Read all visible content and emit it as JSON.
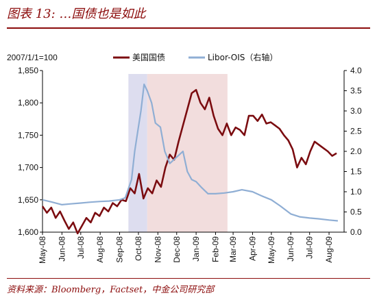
{
  "figure": {
    "title": "图表 13: …国债也是如此",
    "source": "资料来源：Bloomberg，Factset，中金公司研究部"
  },
  "chart_data": {
    "type": "line",
    "base_note": "2007/1/1=100",
    "x_ticks": [
      "May-08",
      "Jun-08",
      "Jul-08",
      "Aug-08",
      "Sep-08",
      "Oct-08",
      "Nov-08",
      "Dec-08",
      "Jan-09",
      "Feb-09",
      "Mar-09",
      "Apr-09",
      "May-09",
      "Jun-09",
      "Jul-09",
      "Aug-09"
    ],
    "y_left": {
      "ticks": [
        "1,600",
        "1,650",
        "1,700",
        "1,750",
        "1,800",
        "1,850"
      ],
      "min": 1600,
      "max": 1850
    },
    "y_right": {
      "ticks": [
        "0.0",
        "0.5",
        "1.0",
        "1.5",
        "2.0",
        "2.5",
        "3.0",
        "3.5",
        "4.0"
      ],
      "min": 0,
      "max": 4
    },
    "shaded_regions": [
      {
        "from": "2008-09-15",
        "to": "2008-10-15",
        "color": "#DDDDEF"
      },
      {
        "from": "2008-10-15",
        "to": "2009-02-20",
        "color": "#F2DDDD"
      }
    ],
    "series": [
      {
        "name": "美国国债",
        "axis": "left",
        "color": "#7B0C10",
        "points": [
          [
            "2008-05-01",
            1640
          ],
          [
            "2008-05-08",
            1630
          ],
          [
            "2008-05-15",
            1638
          ],
          [
            "2008-05-22",
            1622
          ],
          [
            "2008-05-29",
            1632
          ],
          [
            "2008-06-05",
            1618
          ],
          [
            "2008-06-12",
            1605
          ],
          [
            "2008-06-19",
            1615
          ],
          [
            "2008-06-26",
            1598
          ],
          [
            "2008-07-03",
            1610
          ],
          [
            "2008-07-10",
            1622
          ],
          [
            "2008-07-17",
            1615
          ],
          [
            "2008-07-24",
            1630
          ],
          [
            "2008-07-31",
            1625
          ],
          [
            "2008-08-07",
            1638
          ],
          [
            "2008-08-14",
            1632
          ],
          [
            "2008-08-21",
            1645
          ],
          [
            "2008-08-28",
            1640
          ],
          [
            "2008-09-04",
            1650
          ],
          [
            "2008-09-11",
            1648
          ],
          [
            "2008-09-18",
            1668
          ],
          [
            "2008-09-25",
            1660
          ],
          [
            "2008-10-02",
            1690
          ],
          [
            "2008-10-09",
            1652
          ],
          [
            "2008-10-16",
            1668
          ],
          [
            "2008-10-23",
            1660
          ],
          [
            "2008-10-30",
            1680
          ],
          [
            "2008-11-06",
            1670
          ],
          [
            "2008-11-13",
            1700
          ],
          [
            "2008-11-20",
            1720
          ],
          [
            "2008-11-27",
            1712
          ],
          [
            "2008-12-04",
            1740
          ],
          [
            "2008-12-11",
            1765
          ],
          [
            "2008-12-18",
            1790
          ],
          [
            "2008-12-25",
            1815
          ],
          [
            "2009-01-01",
            1820
          ],
          [
            "2009-01-08",
            1800
          ],
          [
            "2009-01-15",
            1790
          ],
          [
            "2009-01-22",
            1808
          ],
          [
            "2009-01-29",
            1780
          ],
          [
            "2009-02-05",
            1760
          ],
          [
            "2009-02-12",
            1750
          ],
          [
            "2009-02-19",
            1768
          ],
          [
            "2009-02-26",
            1750
          ],
          [
            "2009-03-05",
            1762
          ],
          [
            "2009-03-12",
            1758
          ],
          [
            "2009-03-19",
            1750
          ],
          [
            "2009-03-26",
            1780
          ],
          [
            "2009-04-02",
            1780
          ],
          [
            "2009-04-09",
            1772
          ],
          [
            "2009-04-16",
            1782
          ],
          [
            "2009-04-23",
            1768
          ],
          [
            "2009-04-30",
            1770
          ],
          [
            "2009-05-07",
            1765
          ],
          [
            "2009-05-14",
            1760
          ],
          [
            "2009-05-21",
            1750
          ],
          [
            "2009-05-28",
            1742
          ],
          [
            "2009-06-04",
            1728
          ],
          [
            "2009-06-11",
            1700
          ],
          [
            "2009-06-18",
            1715
          ],
          [
            "2009-06-25",
            1705
          ],
          [
            "2009-07-02",
            1725
          ],
          [
            "2009-07-09",
            1740
          ],
          [
            "2009-07-16",
            1735
          ],
          [
            "2009-07-23",
            1730
          ],
          [
            "2009-07-30",
            1725
          ],
          [
            "2009-08-06",
            1718
          ],
          [
            "2009-08-13",
            1722
          ]
        ]
      },
      {
        "name": "Libor-OIS（右轴）",
        "axis": "right",
        "color": "#8FAED4",
        "points": [
          [
            "2008-05-01",
            0.8
          ],
          [
            "2008-05-15",
            0.75
          ],
          [
            "2008-06-01",
            0.68
          ],
          [
            "2008-06-15",
            0.7
          ],
          [
            "2008-07-01",
            0.72
          ],
          [
            "2008-07-15",
            0.74
          ],
          [
            "2008-08-01",
            0.76
          ],
          [
            "2008-08-15",
            0.77
          ],
          [
            "2008-09-01",
            0.8
          ],
          [
            "2008-09-10",
            0.85
          ],
          [
            "2008-09-20",
            1.3
          ],
          [
            "2008-09-25",
            2.0
          ],
          [
            "2008-09-30",
            2.5
          ],
          [
            "2008-10-05",
            3.0
          ],
          [
            "2008-10-10",
            3.66
          ],
          [
            "2008-10-15",
            3.5
          ],
          [
            "2008-10-22",
            3.2
          ],
          [
            "2008-10-28",
            2.7
          ],
          [
            "2008-11-05",
            2.6
          ],
          [
            "2008-11-12",
            2.0
          ],
          [
            "2008-11-20",
            1.7
          ],
          [
            "2008-11-27",
            1.8
          ],
          [
            "2008-12-04",
            1.9
          ],
          [
            "2008-12-11",
            2.0
          ],
          [
            "2008-12-18",
            1.5
          ],
          [
            "2008-12-25",
            1.3
          ],
          [
            "2009-01-01",
            1.25
          ],
          [
            "2009-01-10",
            1.1
          ],
          [
            "2009-01-20",
            0.95
          ],
          [
            "2009-02-01",
            0.95
          ],
          [
            "2009-02-15",
            0.97
          ],
          [
            "2009-03-01",
            1.0
          ],
          [
            "2009-03-15",
            1.05
          ],
          [
            "2009-04-01",
            1.0
          ],
          [
            "2009-04-15",
            0.9
          ],
          [
            "2009-05-01",
            0.8
          ],
          [
            "2009-05-15",
            0.65
          ],
          [
            "2009-06-01",
            0.45
          ],
          [
            "2009-06-15",
            0.38
          ],
          [
            "2009-07-01",
            0.35
          ],
          [
            "2009-07-15",
            0.33
          ],
          [
            "2009-08-01",
            0.3
          ],
          [
            "2009-08-15",
            0.28
          ]
        ]
      }
    ]
  }
}
